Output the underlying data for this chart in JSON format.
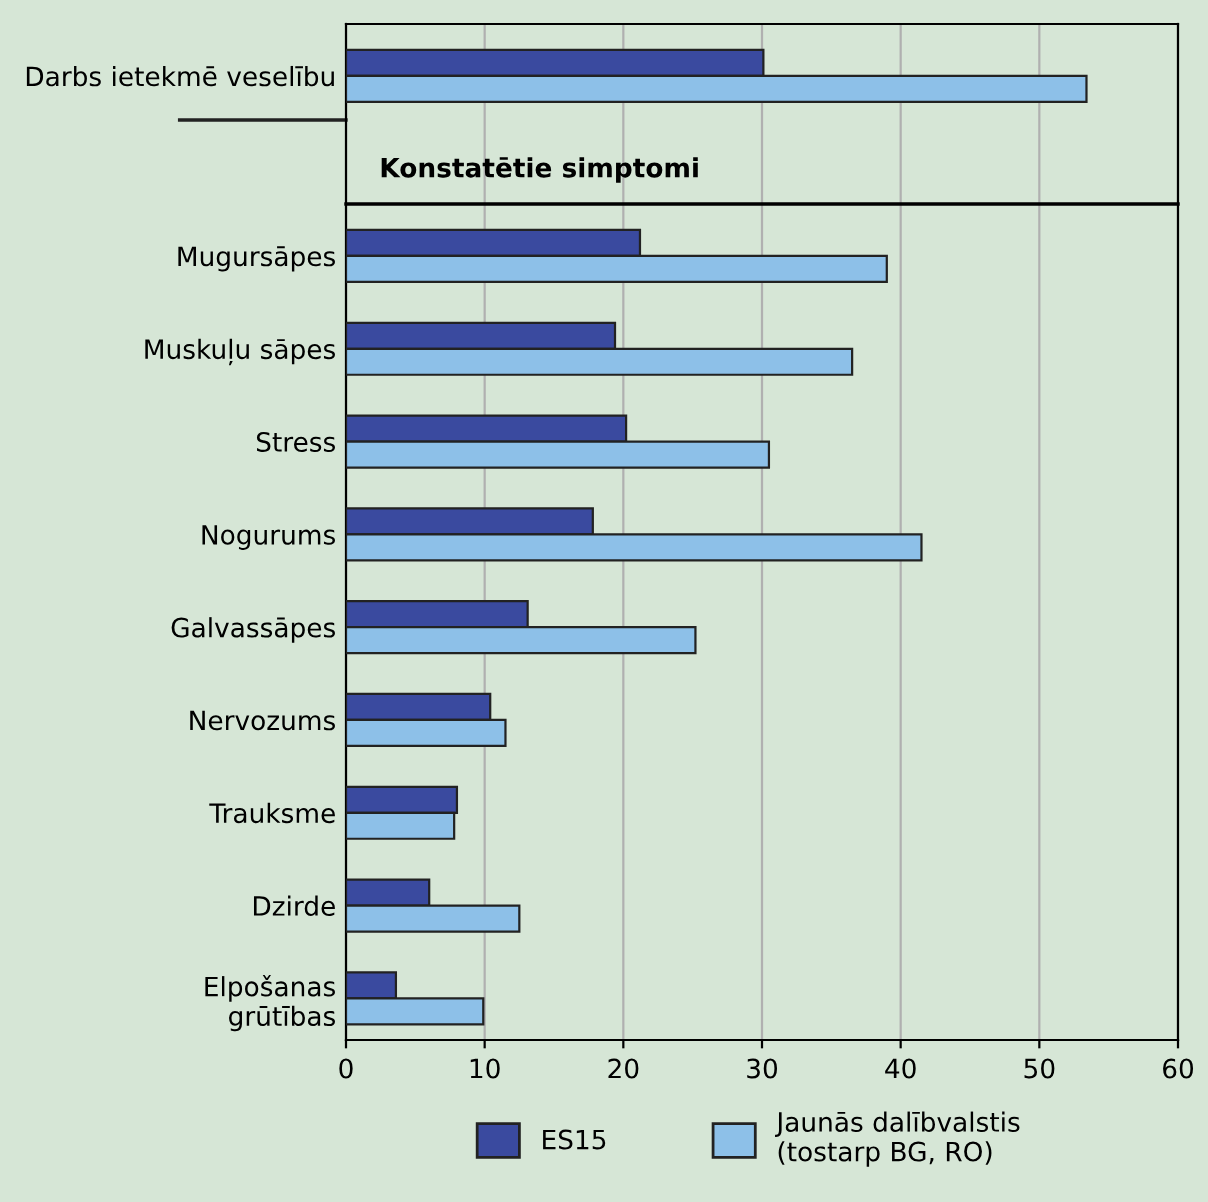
{
  "chart_data": [
    {
      "type": "bar",
      "orientation": "horizontal",
      "categories": [
        "Darbs ietekmē veselību"
      ],
      "series": [
        {
          "name": "ES15",
          "color": "#3a4a9f",
          "values": [
            30.1
          ]
        },
        {
          "name": "Jaunās dalībvalstis\n(tostarp BG, RO)",
          "color": "#8dc0e8",
          "values": [
            53.4
          ]
        }
      ],
      "annotations": [
        "Konstatētie simptomi"
      ],
      "xlim": [
        0,
        60
      ],
      "xticks": [
        0,
        10,
        20,
        30,
        40,
        50,
        60
      ],
      "tick_labels": "y",
      "grid": "x",
      "legend": "bottom"
    },
    {
      "type": "bar",
      "orientation": "horizontal",
      "categories": [
        "Mugursāpes",
        "Muskuļu sāpes",
        "Stress",
        "Nogurums",
        "Galvassāpes",
        "Nervozums",
        "Trauksme",
        "Dzirde",
        "Elpošanas\ngrūtības"
      ],
      "series": [
        {
          "color": "#3a4a9f",
          "values": [
            21.2,
            19.4,
            20.2,
            17.8,
            13.1,
            10.4,
            8.0,
            6.0,
            3.6
          ]
        },
        {
          "color": "#8dc0e8",
          "values": [
            39.0,
            36.5,
            30.5,
            41.5,
            25.2,
            11.5,
            7.8,
            12.5,
            9.9
          ]
        }
      ],
      "xlim": [
        0,
        60
      ],
      "xticks": [
        0,
        10,
        20,
        30,
        40,
        50,
        60
      ],
      "grid": "x"
    }
  ]
}
